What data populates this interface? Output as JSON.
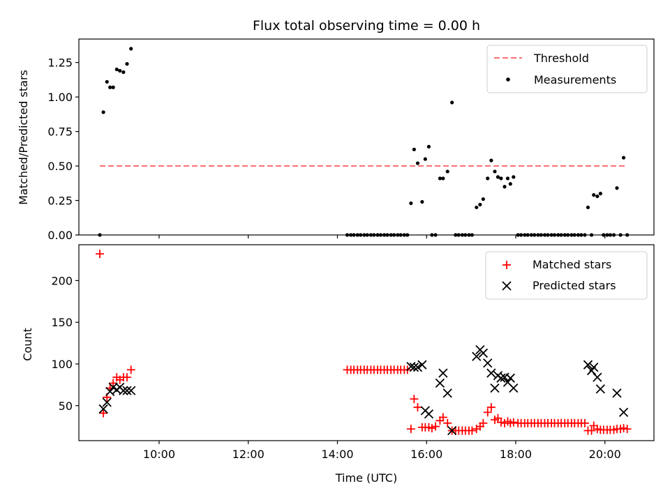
{
  "chart_data": [
    {
      "type": "scatter",
      "title": "Flux total observing time = 0.00 h",
      "ylabel": "Matched/Predicted stars",
      "xlabel": "",
      "xlim": [
        8.2,
        21.1
      ],
      "ylim": [
        0,
        1.42
      ],
      "yticks": [
        0.0,
        0.25,
        0.5,
        0.75,
        1.0,
        1.25
      ],
      "ytick_labels": [
        "0.00",
        "0.25",
        "0.50",
        "0.75",
        "1.00",
        "1.25"
      ],
      "xticks": [
        10,
        12,
        14,
        16,
        18,
        20
      ],
      "legend_position": "top-right",
      "series": [
        {
          "name": "Threshold",
          "kind": "line",
          "color": "#ff7070",
          "style": "dashed",
          "x": [
            8.67,
            20.5
          ],
          "y": [
            0.5,
            0.5
          ]
        },
        {
          "name": "Measurements",
          "kind": "scatter",
          "color": "#000000",
          "points": [
            [
              8.67,
              0.0
            ],
            [
              8.75,
              0.89
            ],
            [
              8.83,
              1.11
            ],
            [
              8.9,
              1.07
            ],
            [
              8.97,
              1.07
            ],
            [
              9.05,
              1.2
            ],
            [
              9.12,
              1.19
            ],
            [
              9.2,
              1.18
            ],
            [
              9.28,
              1.24
            ],
            [
              9.37,
              1.35
            ],
            [
              14.22,
              0.0
            ],
            [
              14.3,
              0.0
            ],
            [
              14.37,
              0.0
            ],
            [
              14.45,
              0.0
            ],
            [
              14.52,
              0.0
            ],
            [
              14.6,
              0.0
            ],
            [
              14.67,
              0.0
            ],
            [
              14.75,
              0.0
            ],
            [
              14.82,
              0.0
            ],
            [
              14.9,
              0.0
            ],
            [
              14.97,
              0.0
            ],
            [
              15.05,
              0.0
            ],
            [
              15.12,
              0.0
            ],
            [
              15.2,
              0.0
            ],
            [
              15.27,
              0.0
            ],
            [
              15.35,
              0.0
            ],
            [
              15.42,
              0.0
            ],
            [
              15.5,
              0.0
            ],
            [
              15.57,
              0.0
            ],
            [
              15.65,
              0.23
            ],
            [
              15.72,
              0.62
            ],
            [
              15.8,
              0.52
            ],
            [
              15.9,
              0.24
            ],
            [
              15.97,
              0.55
            ],
            [
              16.05,
              0.64
            ],
            [
              16.12,
              0.0
            ],
            [
              16.2,
              0.0
            ],
            [
              16.3,
              0.41
            ],
            [
              16.37,
              0.41
            ],
            [
              16.47,
              0.46
            ],
            [
              16.57,
              0.96
            ],
            [
              16.65,
              0.0
            ],
            [
              16.72,
              0.0
            ],
            [
              16.8,
              0.0
            ],
            [
              16.87,
              0.0
            ],
            [
              16.95,
              0.0
            ],
            [
              17.02,
              0.0
            ],
            [
              17.12,
              0.2
            ],
            [
              17.2,
              0.22
            ],
            [
              17.27,
              0.26
            ],
            [
              17.37,
              0.41
            ],
            [
              17.45,
              0.54
            ],
            [
              17.53,
              0.46
            ],
            [
              17.6,
              0.42
            ],
            [
              17.67,
              0.41
            ],
            [
              17.75,
              0.35
            ],
            [
              17.82,
              0.41
            ],
            [
              17.88,
              0.37
            ],
            [
              17.95,
              0.42
            ],
            [
              18.05,
              0.0
            ],
            [
              18.12,
              0.0
            ],
            [
              18.2,
              0.0
            ],
            [
              18.27,
              0.0
            ],
            [
              18.35,
              0.0
            ],
            [
              18.42,
              0.0
            ],
            [
              18.5,
              0.0
            ],
            [
              18.57,
              0.0
            ],
            [
              18.65,
              0.0
            ],
            [
              18.72,
              0.0
            ],
            [
              18.8,
              0.0
            ],
            [
              18.87,
              0.0
            ],
            [
              18.95,
              0.0
            ],
            [
              19.02,
              0.0
            ],
            [
              19.1,
              0.0
            ],
            [
              19.17,
              0.0
            ],
            [
              19.25,
              0.0
            ],
            [
              19.32,
              0.0
            ],
            [
              19.4,
              0.0
            ],
            [
              19.47,
              0.0
            ],
            [
              19.55,
              0.0
            ],
            [
              19.62,
              0.2
            ],
            [
              19.7,
              0.0
            ],
            [
              19.75,
              0.29
            ],
            [
              19.83,
              0.28
            ],
            [
              19.9,
              0.3
            ],
            [
              19.97,
              0.0
            ],
            [
              20.05,
              0.0
            ],
            [
              20.12,
              0.0
            ],
            [
              20.2,
              0.0
            ],
            [
              20.27,
              0.34
            ],
            [
              20.35,
              0.0
            ],
            [
              20.42,
              0.56
            ],
            [
              20.5,
              0.0
            ]
          ]
        }
      ]
    },
    {
      "type": "scatter",
      "title": "",
      "ylabel": "Count",
      "xlabel": "Time (UTC)",
      "xlim": [
        8.2,
        21.1
      ],
      "ylim": [
        8,
        243
      ],
      "yticks": [
        50,
        100,
        150,
        200
      ],
      "ytick_labels": [
        "50",
        "100",
        "150",
        "200"
      ],
      "xticks": [
        10,
        12,
        14,
        16,
        18,
        20
      ],
      "xtick_labels": [
        "10:00",
        "12:00",
        "14:00",
        "16:00",
        "18:00",
        "20:00"
      ],
      "legend_position": "top-right",
      "series": [
        {
          "name": "Matched stars",
          "kind": "plus",
          "color": "#ff0000",
          "points": [
            [
              8.67,
              232
            ],
            [
              8.75,
              41
            ],
            [
              8.83,
              60
            ],
            [
              8.9,
              71
            ],
            [
              8.97,
              77
            ],
            [
              9.05,
              84
            ],
            [
              9.12,
              81
            ],
            [
              9.2,
              84
            ],
            [
              9.28,
              84
            ],
            [
              9.37,
              93
            ],
            [
              14.22,
              93
            ],
            [
              14.3,
              93
            ],
            [
              14.37,
              93
            ],
            [
              14.45,
              93
            ],
            [
              14.52,
              93
            ],
            [
              14.6,
              93
            ],
            [
              14.67,
              93
            ],
            [
              14.75,
              93
            ],
            [
              14.82,
              93
            ],
            [
              14.9,
              93
            ],
            [
              14.97,
              93
            ],
            [
              15.05,
              93
            ],
            [
              15.12,
              93
            ],
            [
              15.2,
              93
            ],
            [
              15.27,
              93
            ],
            [
              15.35,
              93
            ],
            [
              15.42,
              93
            ],
            [
              15.5,
              93
            ],
            [
              15.57,
              93
            ],
            [
              15.65,
              22
            ],
            [
              15.72,
              58
            ],
            [
              15.8,
              48
            ],
            [
              15.9,
              24
            ],
            [
              15.97,
              24
            ],
            [
              16.05,
              24
            ],
            [
              16.12,
              23
            ],
            [
              16.2,
              25
            ],
            [
              16.3,
              32
            ],
            [
              16.37,
              36
            ],
            [
              16.47,
              29
            ],
            [
              16.57,
              20
            ],
            [
              16.65,
              20
            ],
            [
              16.72,
              20
            ],
            [
              16.8,
              20
            ],
            [
              16.87,
              20
            ],
            [
              16.95,
              20
            ],
            [
              17.02,
              20
            ],
            [
              17.12,
              22
            ],
            [
              17.2,
              25
            ],
            [
              17.27,
              29
            ],
            [
              17.37,
              42
            ],
            [
              17.45,
              48
            ],
            [
              17.53,
              33
            ],
            [
              17.6,
              35
            ],
            [
              17.67,
              30
            ],
            [
              17.75,
              29
            ],
            [
              17.82,
              31
            ],
            [
              17.88,
              29
            ],
            [
              17.95,
              30
            ],
            [
              18.05,
              29
            ],
            [
              18.12,
              29
            ],
            [
              18.2,
              29
            ],
            [
              18.27,
              29
            ],
            [
              18.35,
              29
            ],
            [
              18.42,
              29
            ],
            [
              18.5,
              29
            ],
            [
              18.57,
              29
            ],
            [
              18.65,
              29
            ],
            [
              18.72,
              29
            ],
            [
              18.8,
              29
            ],
            [
              18.87,
              29
            ],
            [
              18.95,
              29
            ],
            [
              19.02,
              29
            ],
            [
              19.1,
              29
            ],
            [
              19.17,
              29
            ],
            [
              19.25,
              29
            ],
            [
              19.32,
              29
            ],
            [
              19.4,
              29
            ],
            [
              19.47,
              29
            ],
            [
              19.55,
              29
            ],
            [
              19.62,
              20
            ],
            [
              19.7,
              20
            ],
            [
              19.75,
              26
            ],
            [
              19.83,
              22
            ],
            [
              19.9,
              21
            ],
            [
              19.97,
              21
            ],
            [
              20.05,
              21
            ],
            [
              20.12,
              21
            ],
            [
              20.2,
              21
            ],
            [
              20.27,
              22
            ],
            [
              20.35,
              22
            ],
            [
              20.42,
              23
            ],
            [
              20.5,
              22
            ]
          ]
        },
        {
          "name": "Predicted stars",
          "kind": "cross",
          "color": "#000000",
          "points": [
            [
              8.75,
              46
            ],
            [
              8.83,
              54
            ],
            [
              8.9,
              67
            ],
            [
              8.97,
              72
            ],
            [
              9.05,
              69
            ],
            [
              9.12,
              72
            ],
            [
              9.2,
              68
            ],
            [
              9.28,
              68
            ],
            [
              9.37,
              68
            ],
            [
              15.65,
              97
            ],
            [
              15.72,
              96
            ],
            [
              15.8,
              96
            ],
            [
              15.9,
              99
            ],
            [
              15.97,
              44
            ],
            [
              16.05,
              40
            ],
            [
              16.3,
              77
            ],
            [
              16.37,
              89
            ],
            [
              16.47,
              65
            ],
            [
              16.57,
              20
            ],
            [
              17.12,
              109
            ],
            [
              17.2,
              117
            ],
            [
              17.27,
              113
            ],
            [
              17.37,
              101
            ],
            [
              17.45,
              89
            ],
            [
              17.53,
              71
            ],
            [
              17.6,
              86
            ],
            [
              17.67,
              83
            ],
            [
              17.75,
              84
            ],
            [
              17.82,
              78
            ],
            [
              17.88,
              83
            ],
            [
              17.95,
              71
            ],
            [
              19.62,
              99
            ],
            [
              19.7,
              92
            ],
            [
              19.75,
              96
            ],
            [
              19.83,
              84
            ],
            [
              19.9,
              70
            ],
            [
              20.27,
              65
            ],
            [
              20.42,
              42
            ]
          ]
        }
      ]
    }
  ]
}
